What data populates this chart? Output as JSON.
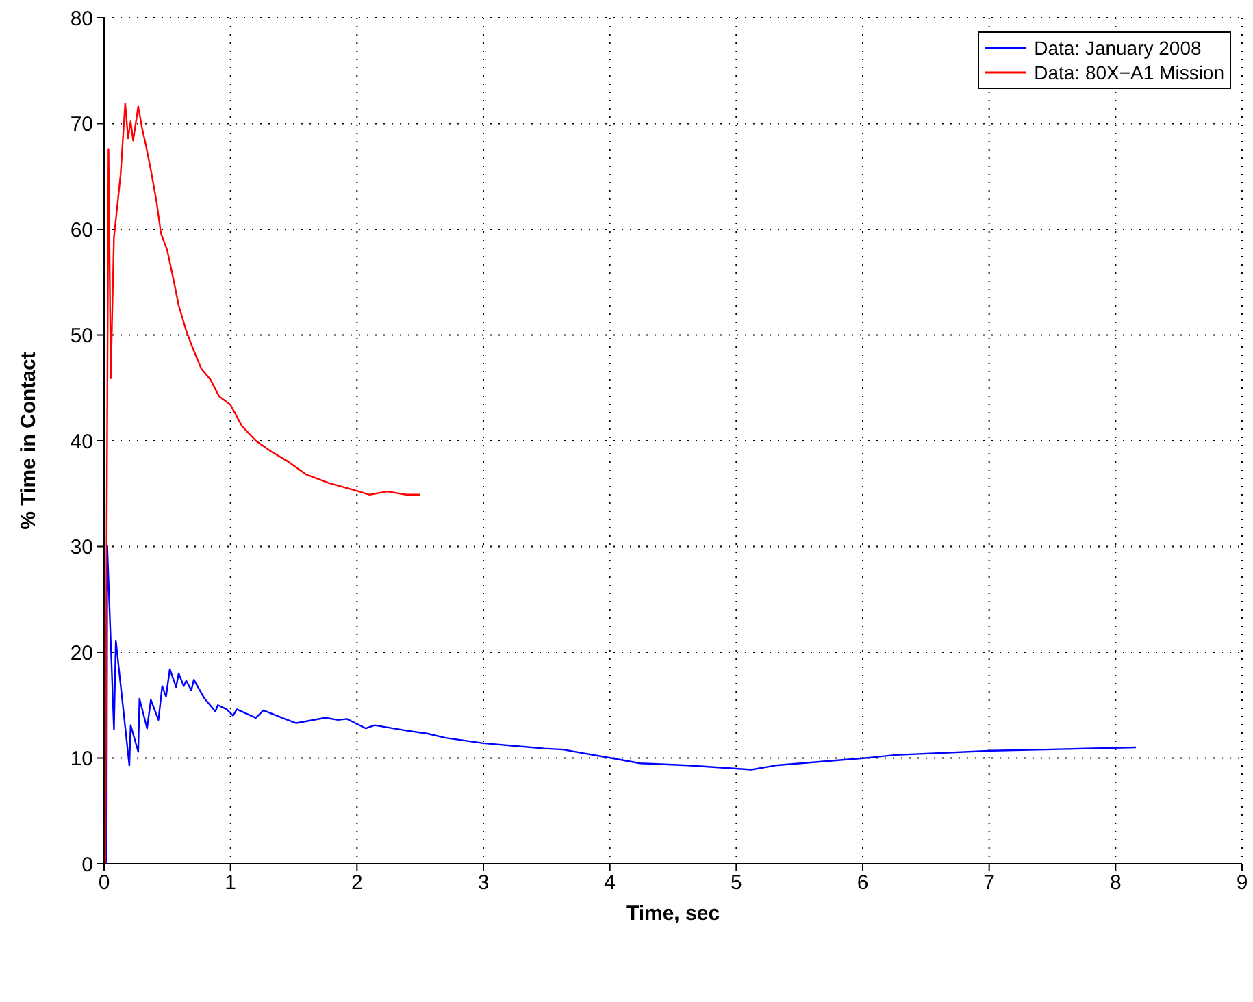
{
  "chart_data": {
    "type": "line",
    "xlabel": "Time, sec",
    "ylabel": "% Time in Contact",
    "xlim": [
      0,
      9
    ],
    "xticks": [
      0,
      1,
      2,
      3,
      4,
      5,
      6,
      7,
      8,
      9
    ],
    "ylim": [
      0,
      80
    ],
    "yticks": [
      0,
      10,
      20,
      30,
      40,
      50,
      60,
      70,
      80
    ],
    "grid": true,
    "legend": "top right",
    "marker": "none",
    "line_style": "solid",
    "series": [
      {
        "name": "Data: January 2008",
        "color": "#0000ff",
        "x": [
          0.02,
          0.025,
          0.078,
          0.093,
          0.2,
          0.21,
          0.27,
          0.28,
          0.34,
          0.37,
          0.43,
          0.46,
          0.49,
          0.52,
          0.57,
          0.59,
          0.63,
          0.65,
          0.69,
          0.71,
          0.79,
          0.88,
          0.9,
          0.97,
          1.02,
          1.05,
          1.2,
          1.26,
          1.43,
          1.52,
          1.75,
          1.85,
          1.92,
          2.07,
          2.14,
          2.39,
          2.56,
          2.7,
          3.0,
          3.48,
          3.63,
          4.01,
          4.24,
          4.62,
          5.12,
          5.31,
          6.02,
          6.26,
          7.02,
          7.44,
          8.16
        ],
        "values": [
          0,
          30.1,
          12.7,
          21.1,
          9.3,
          13.1,
          10.6,
          15.6,
          12.8,
          15.5,
          13.6,
          16.8,
          15.8,
          18.4,
          16.7,
          18.0,
          16.8,
          17.3,
          16.4,
          17.4,
          15.7,
          14.4,
          15.0,
          14.6,
          14.0,
          14.6,
          13.8,
          14.5,
          13.7,
          13.3,
          13.8,
          13.6,
          13.7,
          12.8,
          13.1,
          12.6,
          12.3,
          11.9,
          11.4,
          10.9,
          10.8,
          10.0,
          9.5,
          9.3,
          8.9,
          9.3,
          10.0,
          10.3,
          10.7,
          10.8,
          11.0
        ]
      },
      {
        "name": "Data: 80X−A1 Mission",
        "color": "#ff0000",
        "x": [
          0.01,
          0.02,
          0.035,
          0.053,
          0.078,
          0.131,
          0.167,
          0.19,
          0.21,
          0.23,
          0.27,
          0.3,
          0.33,
          0.37,
          0.415,
          0.45,
          0.5,
          0.55,
          0.59,
          0.65,
          0.7,
          0.77,
          0.84,
          0.91,
          1.0,
          1.09,
          1.2,
          1.32,
          1.46,
          1.6,
          1.78,
          1.99,
          2.1,
          2.24,
          2.39,
          2.5
        ],
        "values": [
          0,
          30,
          67.6,
          45.9,
          59.2,
          65.2,
          71.9,
          68.6,
          70.2,
          68.4,
          71.6,
          69.6,
          68.0,
          65.6,
          62.6,
          59.6,
          58.0,
          55.2,
          52.8,
          50.4,
          48.8,
          46.8,
          45.8,
          44.2,
          43.4,
          41.4,
          40.0,
          39.0,
          38.0,
          36.8,
          36.0,
          35.3,
          34.9,
          35.2,
          34.9,
          34.9
        ]
      }
    ]
  }
}
